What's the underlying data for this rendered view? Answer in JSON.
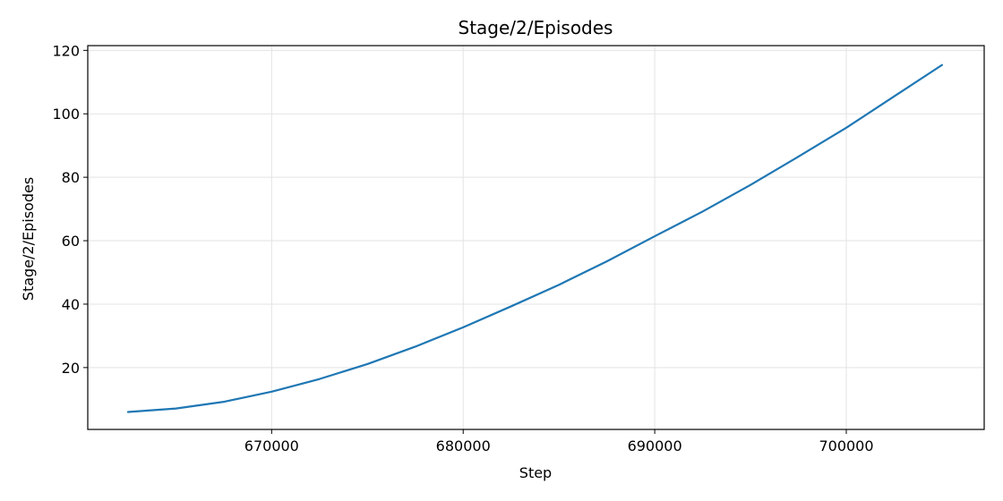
{
  "chart_data": {
    "type": "line",
    "title": "Stage/2/Episodes",
    "xlabel": "Step",
    "ylabel": "Stage/2/Episodes",
    "xlim": [
      660400,
      707200
    ],
    "ylim": [
      0.5,
      121.5
    ],
    "xticks": [
      670000,
      680000,
      690000,
      700000
    ],
    "xtick_labels": [
      "670000",
      "680000",
      "690000",
      "700000"
    ],
    "yticks": [
      20,
      40,
      60,
      80,
      100,
      120
    ],
    "ytick_labels": [
      "20",
      "40",
      "60",
      "80",
      "100",
      "120"
    ],
    "grid": true,
    "series": [
      {
        "color": "#1f77b4",
        "x": [
          662500,
          665000,
          667500,
          670000,
          672500,
          675000,
          677500,
          680000,
          682500,
          685000,
          687500,
          690000,
          692500,
          695000,
          697500,
          700000,
          702500,
          705000
        ],
        "y": [
          6.0,
          7.1,
          9.2,
          12.4,
          16.4,
          21.1,
          26.6,
          32.7,
          39.3,
          46.1,
          53.5,
          61.4,
          69.2,
          77.6,
          86.5,
          95.6,
          105.5,
          115.4
        ]
      }
    ]
  }
}
